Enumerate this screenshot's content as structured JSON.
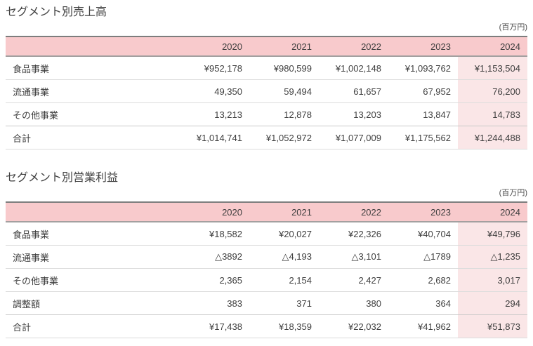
{
  "page": {
    "language": "ja",
    "background": "#ffffff"
  },
  "colors": {
    "header_bg": "#f8cacc",
    "highlight_column_bg": "#fae6e7",
    "text": "#3e3e3e",
    "header_top_border": "#7d7d7d",
    "header_bottom_border": "#a3a0a0",
    "row_separator": "#dcdcdc",
    "pre_total_separator": "#c9c9c9"
  },
  "tables": [
    {
      "title": "セグメント別売上高",
      "unit": "(百万円)",
      "years": [
        "2020",
        "2021",
        "2022",
        "2023",
        "2024"
      ],
      "highlight_year": "2024",
      "rows": [
        {
          "label": "食品事業",
          "values": [
            "¥952,178",
            "¥980,599",
            "¥1,002,148",
            "¥1,093,762",
            "¥1,153,504"
          ]
        },
        {
          "label": "流通事業",
          "values": [
            "49,350",
            "59,494",
            "61,657",
            "67,952",
            "76,200"
          ]
        },
        {
          "label": "その他事業",
          "values": [
            "13,213",
            "12,878",
            "13,203",
            "13,847",
            "14,783"
          ]
        },
        {
          "label": "合計",
          "is_total": true,
          "values": [
            "¥1,014,741",
            "¥1,052,972",
            "¥1,077,009",
            "¥1,175,562",
            "¥1,244,488"
          ]
        }
      ]
    },
    {
      "title": "セグメント別営業利益",
      "unit": "(百万円)",
      "years": [
        "2020",
        "2021",
        "2022",
        "2023",
        "2024"
      ],
      "highlight_year": "2024",
      "rows": [
        {
          "label": "食品事業",
          "values": [
            "¥18,582",
            "¥20,027",
            "¥22,326",
            "¥40,704",
            "¥49,796"
          ]
        },
        {
          "label": "流通事業",
          "values": [
            "△3892",
            "△4,193",
            "△3,101",
            "△1789",
            "△1,235"
          ]
        },
        {
          "label": "その他事業",
          "values": [
            "2,365",
            "2,154",
            "2,427",
            "2,682",
            "3,017"
          ]
        },
        {
          "label": "調整額",
          "values": [
            "383",
            "371",
            "380",
            "364",
            "294"
          ]
        },
        {
          "label": "合計",
          "is_total": true,
          "values": [
            "¥17,438",
            "¥18,359",
            "¥22,032",
            "¥41,962",
            "¥51,873"
          ]
        }
      ]
    }
  ]
}
